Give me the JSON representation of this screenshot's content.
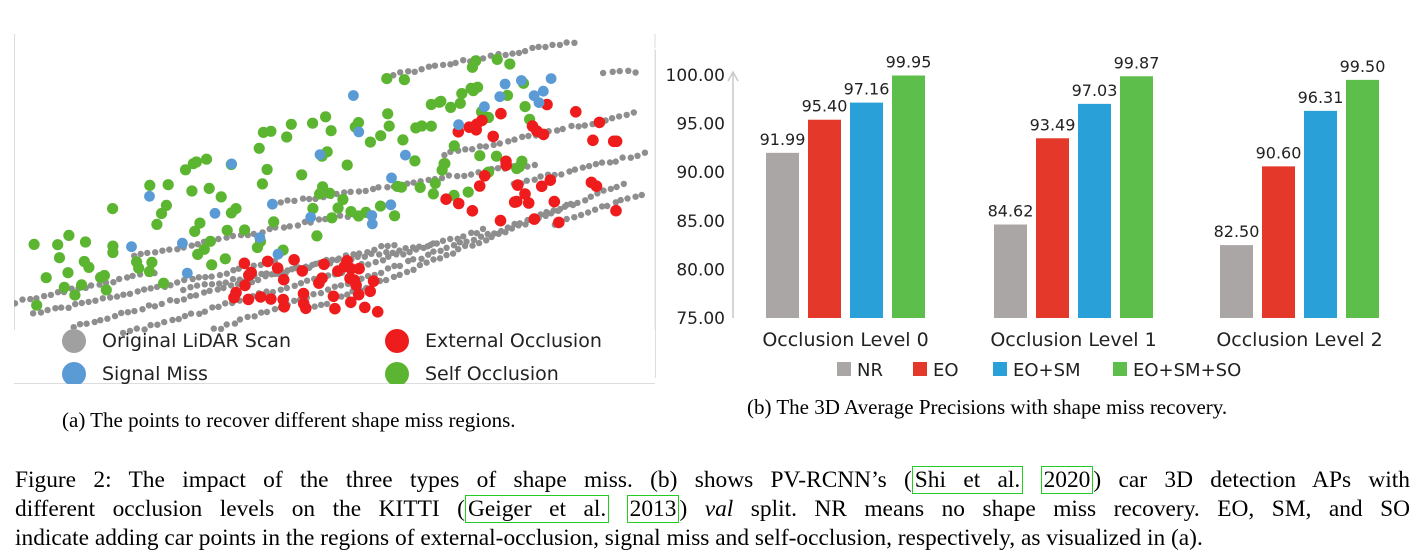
{
  "panel_a": {
    "legend": [
      {
        "label": "Original LiDAR Scan",
        "color": "#a0a0a0"
      },
      {
        "label": "External Occlusion",
        "color": "#ee1c1c"
      },
      {
        "label": "Signal Miss",
        "color": "#5b9bd5"
      },
      {
        "label": "Self Occlusion",
        "color": "#5cb531"
      }
    ],
    "caption": "(a) The points to recover different shape miss regions."
  },
  "panel_b": {
    "caption": "(b) The 3D Average Precisions with shape miss recovery."
  },
  "chart_data": {
    "type": "bar",
    "title": "",
    "xlabel": "",
    "ylabel": "",
    "categories": [
      "Occlusion Level 0",
      "Occlusion Level 1",
      "Occlusion Level 2"
    ],
    "series": [
      {
        "name": "NR",
        "color": "#aaa6a5",
        "values": [
          91.99,
          84.62,
          82.5
        ],
        "labels": [
          "91.99",
          "84.62",
          "82.50"
        ]
      },
      {
        "name": "EO",
        "color": "#e3382a",
        "values": [
          95.4,
          93.49,
          90.6
        ],
        "labels": [
          "95.40",
          "93.49",
          "90.60"
        ]
      },
      {
        "name": "EO+SM",
        "color": "#2aa0d8",
        "values": [
          97.16,
          97.03,
          96.31
        ],
        "labels": [
          "97.16",
          "97.03",
          "96.31"
        ]
      },
      {
        "name": "EO+SM+SO",
        "color": "#5dbe4b",
        "values": [
          99.95,
          99.87,
          99.5
        ],
        "labels": [
          "99.95",
          "99.87",
          "99.50"
        ]
      }
    ],
    "ylim": [
      75,
      100
    ],
    "yticks": [
      "75.00",
      "80.00",
      "85.00",
      "90.00",
      "95.00",
      "100.00"
    ],
    "legend_position": "bottom"
  },
  "figure_caption": {
    "lines": [
      {
        "parts": [
          {
            "t": "Figure 2: The impact of the three types of shape miss. (b) shows PV-RCNN’s ("
          },
          {
            "t": "Shi et al.",
            "cite": true
          },
          {
            "t": " "
          },
          {
            "t": "2020",
            "cite": true
          },
          {
            "t": ") car 3D detection APs with"
          }
        ]
      },
      {
        "parts": [
          {
            "t": "different occlusion levels on the KITTI ("
          },
          {
            "t": "Geiger et al.",
            "cite": true
          },
          {
            "t": " "
          },
          {
            "t": "2013",
            "cite": true
          },
          {
            "t": ") "
          },
          {
            "t": "val",
            "italic": true
          },
          {
            "t": " split. NR means no shape miss recovery. EO, SM, and SO"
          }
        ]
      },
      {
        "parts": [
          {
            "t": "indicate adding car points in the regions of external-occlusion, signal miss and self-occlusion, respectively, as visualized in (a)."
          }
        ]
      }
    ]
  }
}
